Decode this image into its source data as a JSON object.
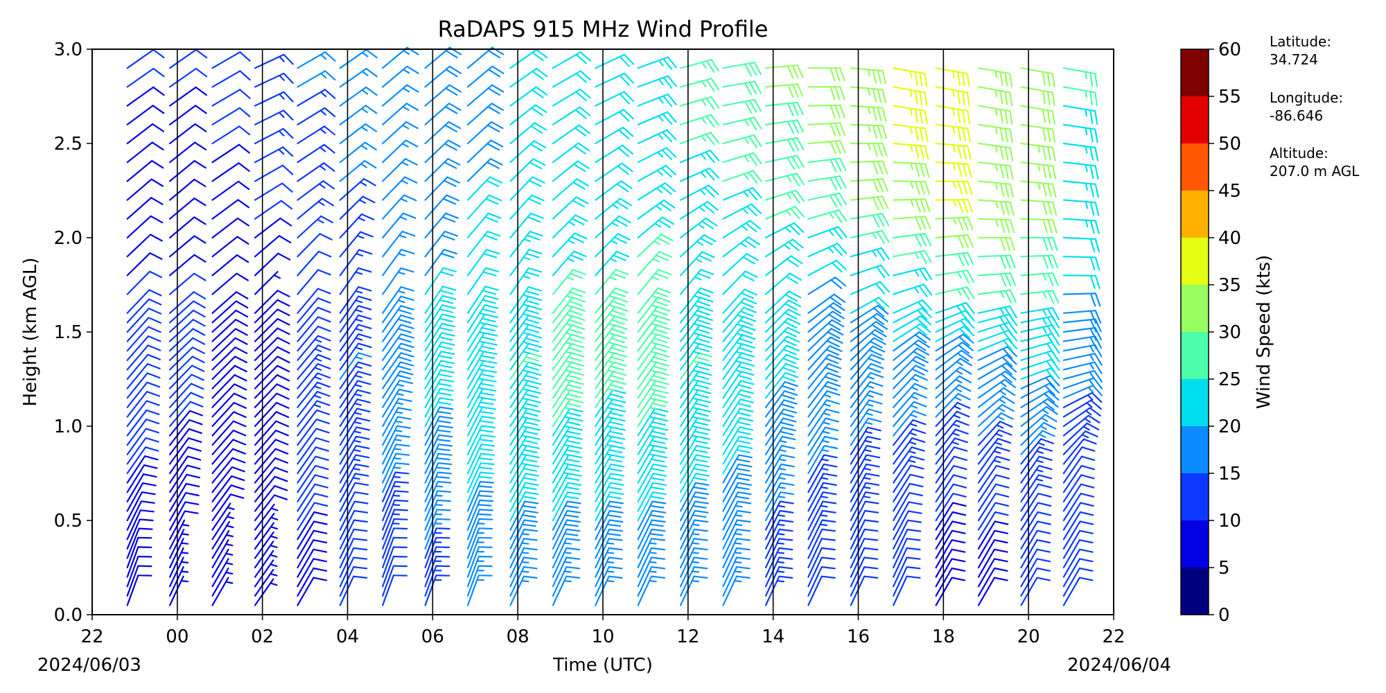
{
  "chart_data": {
    "type": "wind_barb_profile",
    "title": "RaDAPS 915 MHz Wind Profile",
    "xlabel": "Time (UTC)",
    "ylabel": "Height (km AGL)",
    "x_tick_labels": [
      "22",
      "00",
      "02",
      "04",
      "06",
      "08",
      "10",
      "12",
      "14",
      "16",
      "18",
      "20",
      "22"
    ],
    "x_tick_hours": [
      -2,
      0,
      2,
      4,
      6,
      8,
      10,
      12,
      14,
      16,
      18,
      20,
      22
    ],
    "date_start": "2024/06/03",
    "date_end": "2024/06/04",
    "xlim_hours": [
      -2,
      22
    ],
    "ylim": [
      0.0,
      3.0
    ],
    "y_ticks": [
      0.0,
      0.5,
      1.0,
      1.5,
      2.0,
      2.5,
      3.0
    ],
    "y_tick_labels": [
      "0.0",
      "0.5",
      "1.0",
      "1.5",
      "2.0",
      "2.5",
      "3.0"
    ],
    "grid_x": true,
    "colorbar": {
      "label": "Wind Speed (kts)",
      "bounds": [
        0,
        5,
        10,
        15,
        20,
        25,
        30,
        35,
        40,
        45,
        50,
        55,
        60
      ],
      "tick_labels": [
        "0",
        "5",
        "10",
        "15",
        "20",
        "25",
        "30",
        "35",
        "40",
        "45",
        "50",
        "55",
        "60"
      ],
      "colors": [
        "#00007f",
        "#0000e3",
        "#0d38ff",
        "#0a8cff",
        "#00dff0",
        "#4dffaa",
        "#97ff60",
        "#e3ff13",
        "#ffb000",
        "#ff5800",
        "#e30000",
        "#7f0000"
      ]
    },
    "barb_columns_hours": [
      -1.5,
      -0.5,
      0.5,
      1.5,
      2.5,
      3.5,
      4.5,
      5.5,
      6.5,
      7.5,
      8.5,
      9.5,
      10.5,
      11.5,
      12.5,
      13.5,
      14.5,
      15.5,
      16.5,
      17.5,
      18.5,
      19.5,
      20.5
    ],
    "barb_rows": [
      {
        "height_km": 0.25,
        "speed_kts": [
          8,
          7,
          7,
          6,
          9,
          10,
          12,
          14,
          16,
          16,
          17,
          17,
          17,
          16,
          15,
          13,
          12,
          11,
          10,
          8,
          9,
          10,
          11
        ],
        "direction_deg": [
          200,
          205,
          210,
          215,
          210,
          205,
          200,
          200,
          200,
          205,
          205,
          205,
          205,
          205,
          205,
          205,
          205,
          205,
          205,
          210,
          210,
          210,
          210
        ]
      },
      {
        "height_km": 0.75,
        "speed_kts": [
          10,
          9,
          8,
          9,
          12,
          14,
          16,
          19,
          22,
          24,
          24,
          23,
          23,
          22,
          20,
          17,
          15,
          14,
          13,
          12,
          13,
          14,
          12
        ],
        "direction_deg": [
          215,
          215,
          220,
          220,
          215,
          210,
          205,
          205,
          205,
          210,
          210,
          210,
          210,
          210,
          210,
          210,
          210,
          210,
          215,
          215,
          215,
          215,
          215
        ]
      },
      {
        "height_km": 1.25,
        "speed_kts": [
          11,
          11,
          10,
          10,
          13,
          15,
          18,
          21,
          23,
          25,
          26,
          26,
          27,
          25,
          23,
          21,
          19,
          18,
          18,
          17,
          18,
          20,
          16
        ],
        "direction_deg": [
          220,
          225,
          225,
          225,
          220,
          215,
          215,
          210,
          210,
          215,
          215,
          215,
          215,
          215,
          215,
          220,
          220,
          220,
          225,
          230,
          240,
          250,
          255
        ]
      },
      {
        "height_km": 1.75,
        "speed_kts": [
          10,
          10,
          8,
          7,
          11,
          14,
          17,
          20,
          22,
          24,
          25,
          25,
          26,
          24,
          22,
          21,
          20,
          21,
          23,
          26,
          27,
          26,
          20
        ],
        "direction_deg": [
          225,
          230,
          230,
          225,
          220,
          215,
          215,
          215,
          215,
          215,
          220,
          220,
          220,
          220,
          225,
          230,
          240,
          250,
          255,
          260,
          265,
          265,
          270
        ]
      },
      {
        "height_km": 2.25,
        "speed_kts": [
          9,
          9,
          8,
          12,
          14,
          15,
          16,
          18,
          20,
          21,
          21,
          22,
          23,
          24,
          25,
          27,
          29,
          31,
          34,
          36,
          35,
          33,
          24
        ],
        "direction_deg": [
          230,
          230,
          235,
          240,
          235,
          230,
          225,
          225,
          225,
          225,
          230,
          235,
          240,
          245,
          250,
          255,
          260,
          265,
          270,
          270,
          275,
          275,
          275
        ]
      },
      {
        "height_km": 2.75,
        "speed_kts": [
          10,
          10,
          12,
          14,
          15,
          16,
          17,
          18,
          19,
          20,
          21,
          22,
          24,
          26,
          28,
          30,
          32,
          34,
          37,
          35,
          34,
          32,
          25
        ],
        "direction_deg": [
          235,
          235,
          240,
          245,
          240,
          235,
          230,
          230,
          230,
          235,
          240,
          245,
          250,
          255,
          260,
          265,
          270,
          275,
          280,
          280,
          280,
          280,
          280
        ]
      }
    ]
  },
  "station": {
    "latitude_label": "Latitude:",
    "latitude_value": "34.724",
    "longitude_label": "Longitude:",
    "longitude_value": "-86.646",
    "altitude_label": "Altitude:",
    "altitude_value": "207.0 m AGL"
  }
}
